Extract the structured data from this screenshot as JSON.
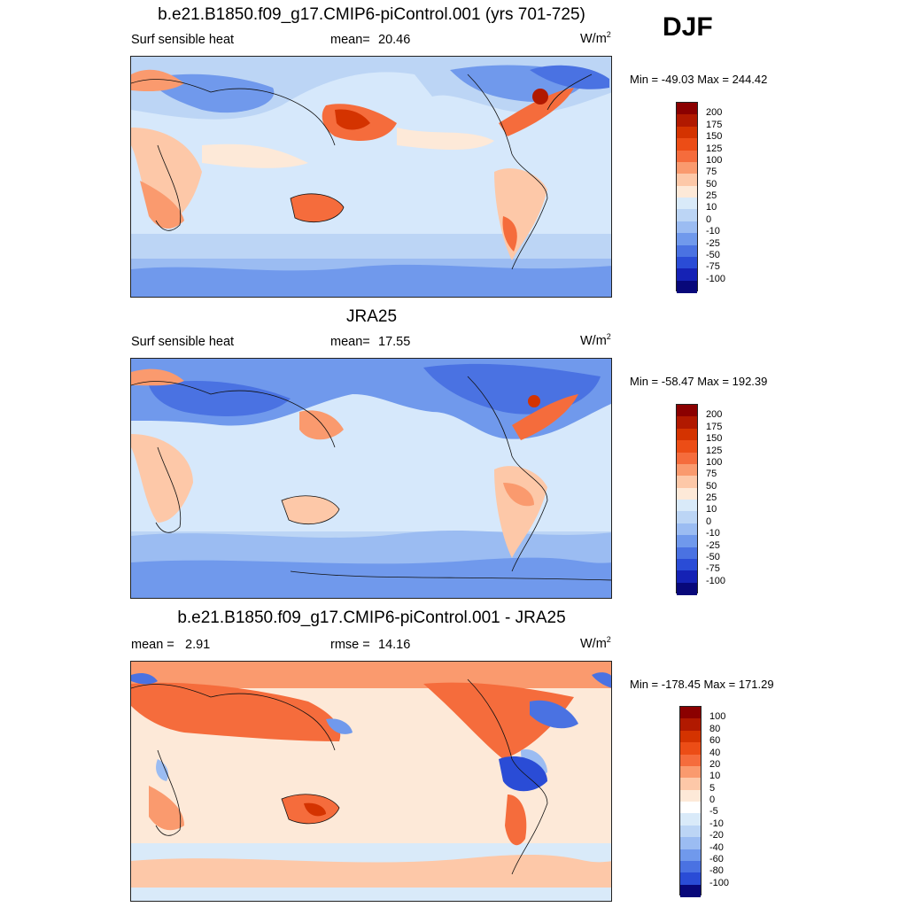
{
  "season": "DJF",
  "panels": [
    {
      "title": "b.e21.B1850.f09_g17.CMIP6-piControl.001 (yrs 701-725)",
      "left_label": "Surf sensible heat",
      "stat1_label": "mean=",
      "stat1_value": "20.46",
      "units": "W/m",
      "units_sup": "2",
      "min_max": "Min = -49.03 Max = 244.42",
      "colorbar": {
        "levels": [
          "200",
          "175",
          "150",
          "125",
          "100",
          "75",
          "50",
          "25",
          "10",
          "0",
          "-10",
          "-25",
          "-50",
          "-75",
          "-100"
        ],
        "colors": [
          "#8b0000",
          "#b11900",
          "#d43300",
          "#ec4d16",
          "#f56c3c",
          "#fa9a6e",
          "#fdc8a8",
          "#fde9d8",
          "#d9eaf9",
          "#bcd5f5",
          "#9bbcf2",
          "#7099ec",
          "#4a72e2",
          "#2a4cd6",
          "#1522b5",
          "#08087a"
        ]
      }
    },
    {
      "title": "JRA25",
      "left_label": "Surf sensible heat",
      "stat1_label": "mean=",
      "stat1_value": "17.55",
      "units": "W/m",
      "units_sup": "2",
      "min_max": "Min = -58.47 Max = 192.39",
      "colorbar": {
        "levels": [
          "200",
          "175",
          "150",
          "125",
          "100",
          "75",
          "50",
          "25",
          "10",
          "0",
          "-10",
          "-25",
          "-50",
          "-75",
          "-100"
        ],
        "colors": [
          "#8b0000",
          "#b11900",
          "#d43300",
          "#ec4d16",
          "#f56c3c",
          "#fa9a6e",
          "#fdc8a8",
          "#fde9d8",
          "#d9eaf9",
          "#bcd5f5",
          "#9bbcf2",
          "#7099ec",
          "#4a72e2",
          "#2a4cd6",
          "#1522b5",
          "#08087a"
        ]
      }
    },
    {
      "title": "b.e21.B1850.f09_g17.CMIP6-piControl.001 - JRA25",
      "left_label": "mean =",
      "left_value": "2.91",
      "stat1_label": "rmse =",
      "stat1_value": "14.16",
      "units": "W/m",
      "units_sup": "2",
      "min_max": "Min = -178.45 Max = 171.29",
      "colorbar": {
        "levels": [
          "100",
          "80",
          "60",
          "40",
          "20",
          "10",
          "5",
          "0",
          "-5",
          "-10",
          "-20",
          "-40",
          "-60",
          "-80",
          "-100"
        ],
        "colors": [
          "#8b0000",
          "#b11900",
          "#d43300",
          "#ec4d16",
          "#f56c3c",
          "#fa9a6e",
          "#fdc8a8",
          "#fde9d8",
          "#ffffff",
          "#d9eaf9",
          "#bcd5f5",
          "#9bbcf2",
          "#7099ec",
          "#4a72e2",
          "#2a4cd6",
          "#08087a"
        ]
      }
    }
  ]
}
